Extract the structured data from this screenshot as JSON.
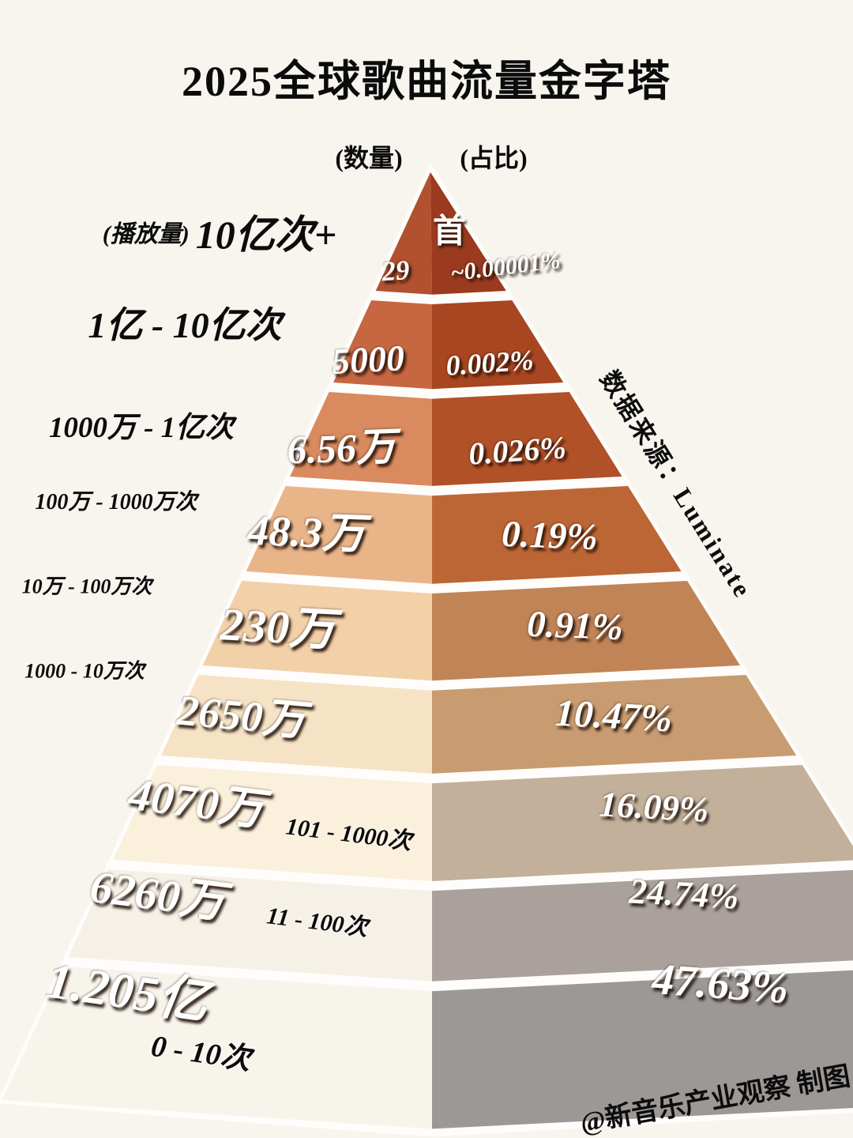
{
  "title": "2025全球歌曲流量金字塔",
  "headers": {
    "quantity": "(数量)",
    "share": "(占比)",
    "plays_prefix": "(播放量)",
    "unit": "首"
  },
  "source_note": "数据来源：Luminate",
  "credit": "@新音乐产业观察 制图",
  "chart_data": {
    "type": "pyramid",
    "title": "2025全球歌曲流量金字塔",
    "source": "Luminate",
    "count_unit": "首",
    "tiers": [
      {
        "plays_range": "10亿次+",
        "count": "29",
        "share": "~0.00001%",
        "color_left": "#b25130",
        "color_right": "#9a3a1e"
      },
      {
        "plays_range": "1亿 - 10亿次",
        "count": "5000",
        "share": "0.002%",
        "color_left": "#c66741",
        "color_right": "#a74621"
      },
      {
        "plays_range": "1000万 - 1亿次",
        "count": "6.56万",
        "share": "0.026%",
        "color_left": "#d98a5e",
        "color_right": "#b15128"
      },
      {
        "plays_range": "100万 - 1000万次",
        "count": "48.3万",
        "share": "0.19%",
        "color_left": "#eab489",
        "color_right": "#bc6636"
      },
      {
        "plays_range": "10万 - 100万次",
        "count": "230万",
        "share": "0.91%",
        "color_left": "#f2d0a8",
        "color_right": "#c08457"
      },
      {
        "plays_range": "1000 - 10万次",
        "count": "2650万",
        "share": "10.47%",
        "color_left": "#f6e3c5",
        "color_right": "#c89c70"
      },
      {
        "plays_range": "101 - 1000次",
        "count": "4070万",
        "share": "16.09%",
        "color_left": "#faf0dc",
        "color_right": "#c2b09a"
      },
      {
        "plays_range": "11 - 100次",
        "count": "6260万",
        "share": "24.74%",
        "color_left": "#f6f1e7",
        "color_right": "#aaa19c"
      },
      {
        "plays_range": "0 - 10次",
        "count": "1.205亿",
        "share": "47.63%",
        "color_left": "#f7f4ec",
        "color_right": "#9c9896"
      }
    ]
  }
}
